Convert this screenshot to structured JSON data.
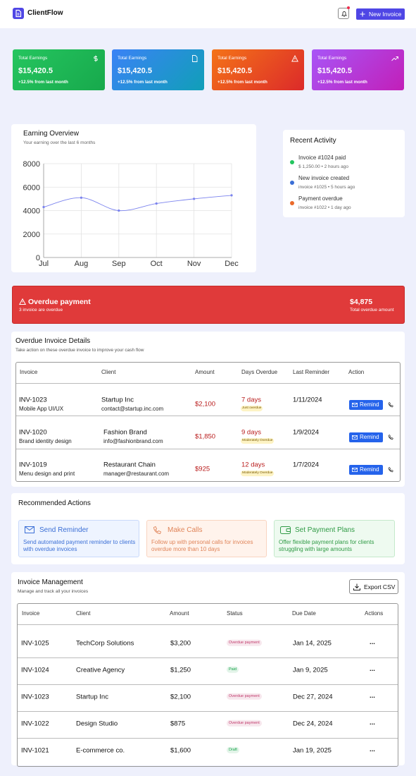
{
  "header": {
    "brand": "ClientFlow",
    "button": "New Invoice"
  },
  "stats": [
    {
      "label": "Total Earnings",
      "value": "$15,420.5",
      "change": "+12.5% from last month"
    },
    {
      "label": "Total Earnings",
      "value": "$15,420.5",
      "change": "+12.5% from last month"
    },
    {
      "label": "Total Earnings",
      "value": "$15,420.5",
      "change": "+12.5% from last month"
    },
    {
      "label": "Total Earnings",
      "value": "$15,420.5",
      "change": "+12.5% from last month"
    }
  ],
  "earning_overview": {
    "title": "Earning Overview",
    "subtitle": "Your earning over the last 6 months",
    "chart": {
      "type": "line",
      "categories": [
        "Jul",
        "Aug",
        "Sep",
        "Oct",
        "Nov",
        "Dec"
      ],
      "values": [
        4300,
        5100,
        4000,
        4600,
        5000,
        5300
      ],
      "color": "#7b83ee",
      "ylim": [
        0,
        8000
      ],
      "yticks": [
        0,
        2000,
        4000,
        6000,
        8000
      ],
      "grid": true
    }
  },
  "recent_activity": {
    "title": "Recent Activity",
    "items": [
      {
        "title": "Invoice #1024 paid",
        "detail": "$ 1,250.00 • 2 hours ago",
        "color": "#22c55e"
      },
      {
        "title": "New invoice created",
        "detail": "invoice #1025 • 5 hours ago",
        "color": "#3b6fd6"
      },
      {
        "title": "Payment overdue",
        "detail": "invoice #1022 • 1 day ago",
        "color": "#ea6a2a"
      }
    ]
  },
  "overdue_banner": {
    "title": "Overdue payment",
    "subtitle": "3 invoice are overdue",
    "amount": "$4,875",
    "amount_label": "Total overdue amount"
  },
  "overdue_details": {
    "title": "Overdue Invoice Details",
    "subtitle": "Take action on these overdue invoice to improve your cash flow",
    "columns": [
      "Invoice",
      "Client",
      "Amount",
      "Days Overdue",
      "Last Reminder",
      "Action"
    ],
    "action": "Remind",
    "rows": [
      {
        "invoice": "INV-1023",
        "description": "Mobile App UI/UX",
        "client": "Startup Inc",
        "email": "contact@startup.inc.com",
        "amount": "$2,100",
        "days": "7 days",
        "badge": "Just overdue",
        "last_reminder": "1/11/2024"
      },
      {
        "invoice": "INV-1020",
        "description": "Brand identity design",
        "client": "Fashion Brand",
        "email": "info@fashionbrand.com",
        "amount": "$1,850",
        "days": "9 days",
        "badge": "Moderately Overdue",
        "last_reminder": "1/9/2024"
      },
      {
        "invoice": "INV-1019",
        "description": "Menu design and print",
        "client": "Restaurant Chain",
        "email": "manager@restaurant.com",
        "amount": "$925",
        "days": "12 days",
        "badge": "Moderately Overdue",
        "last_reminder": "1/7/2024"
      }
    ]
  },
  "recommended": {
    "title": "Recommended Actions",
    "items": [
      {
        "title": "Send Reminder",
        "description": "Send automated payment reminder to clients with overdue invoices"
      },
      {
        "title": "Make Calls",
        "description": "Follow up with personal calls for invoices overdue more than 10 days"
      },
      {
        "title": "Set Payment Plans",
        "description": "Offer flexible payment plans for clients struggling with large amounts"
      }
    ]
  },
  "invoice_management": {
    "title": "Invoice Management",
    "subtitle": "Manage and track all your invoices",
    "export": "Export CSV",
    "columns": [
      "Invoice",
      "Client",
      "Amount",
      "Status",
      "Due Date",
      "Actions"
    ],
    "rows": [
      {
        "invoice": "INV-1025",
        "client": "TechCorp Solutions",
        "amount": "$3,200",
        "status": "Overdue payment",
        "status_color": "#c0396b",
        "due_date": "Jan 14, 2025",
        "actions": "..."
      },
      {
        "invoice": "INV-1024",
        "client": "Creative Agency",
        "amount": "$1,250",
        "status": "Paid",
        "status_color": "#16a34a",
        "due_date": "Jan 9, 2025",
        "actions": "..."
      },
      {
        "invoice": "INV-1023",
        "client": "Startup Inc",
        "amount": "$2,100",
        "status": "Overdue payment",
        "status_color": "#c0396b",
        "due_date": "Dec 27, 2024",
        "actions": "..."
      },
      {
        "invoice": "INV-1022",
        "client": "Design Studio",
        "amount": "$875",
        "status": "Overdue payment",
        "status_color": "#c0396b",
        "due_date": "Dec 24, 2024",
        "actions": "..."
      },
      {
        "invoice": "INV-1021",
        "client": "E-commerce co.",
        "amount": "$1,600",
        "status": "Draft",
        "status_color": "#16a34a",
        "due_date": "Jan 19, 2025",
        "actions": "..."
      }
    ]
  }
}
